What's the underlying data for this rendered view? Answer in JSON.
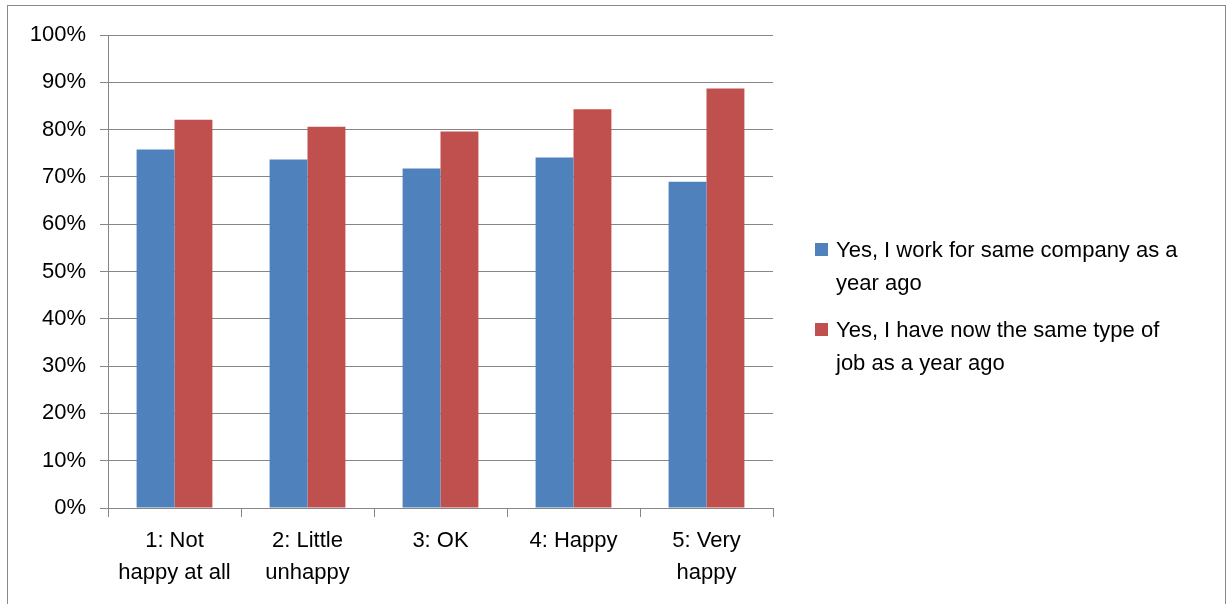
{
  "chart_data": {
    "type": "bar",
    "categories": [
      "1: Not happy at all",
      "2: Little unhappy",
      "3: OK",
      "4: Happy",
      "5: Very happy"
    ],
    "series": [
      {
        "name": "Yes, I work for same company as a year ago",
        "color": "#4f81bd",
        "values": [
          75.8,
          73.7,
          71.8,
          74.1,
          69.0
        ]
      },
      {
        "name": "Yes, I have now the same type of job as a year ago",
        "color": "#c0504d",
        "values": [
          82.1,
          80.6,
          79.6,
          84.3,
          88.7
        ]
      }
    ],
    "ylim": [
      0,
      100
    ],
    "yticks": [
      {
        "value": 0,
        "label": "0%"
      },
      {
        "value": 10,
        "label": "10%"
      },
      {
        "value": 20,
        "label": "20%"
      },
      {
        "value": 30,
        "label": "30%"
      },
      {
        "value": 40,
        "label": "40%"
      },
      {
        "value": 50,
        "label": "50%"
      },
      {
        "value": 60,
        "label": "60%"
      },
      {
        "value": 70,
        "label": "70%"
      },
      {
        "value": 80,
        "label": "80%"
      },
      {
        "value": 90,
        "label": "90%"
      },
      {
        "value": 100,
        "label": "100%"
      }
    ],
    "grid": "y",
    "legend": "right"
  }
}
